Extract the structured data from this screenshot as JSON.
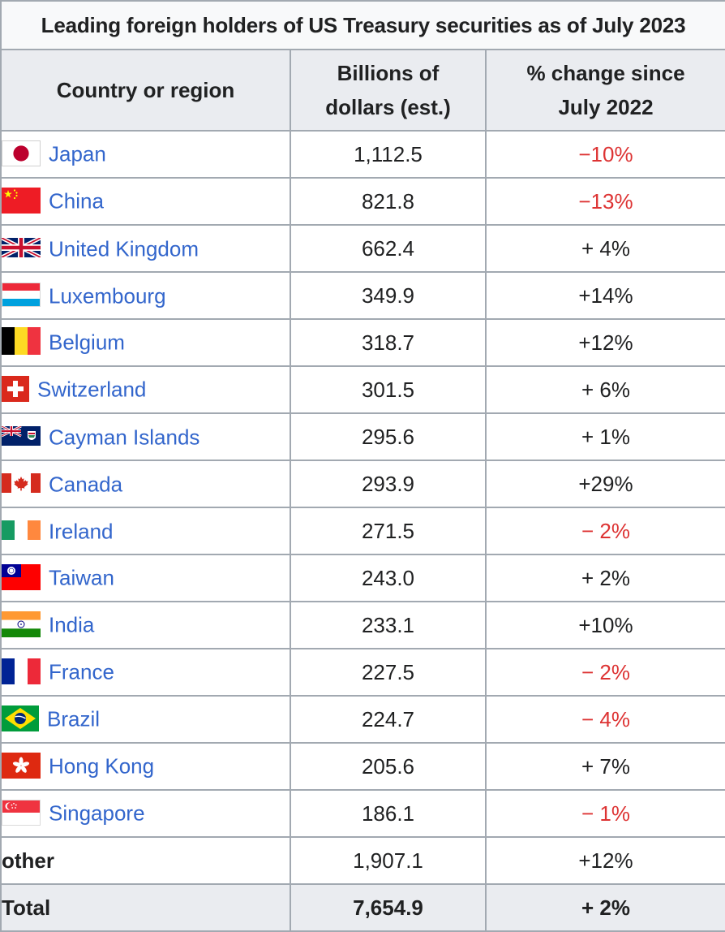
{
  "caption": "Leading foreign holders of US Treasury securities as of July 2023",
  "headers": {
    "country": "Country or region",
    "billions_line1": "Billions of",
    "billions_line2": "dollars (est.)",
    "change_line1": "% change since",
    "change_line2": "July 2022"
  },
  "rows": [
    {
      "country": "Japan",
      "flag": "japan-flag-icon",
      "value": "1,112.5",
      "change": "−10%",
      "negative": true
    },
    {
      "country": "China",
      "flag": "china-flag-icon",
      "value": "821.8",
      "change": "−13%",
      "negative": true
    },
    {
      "country": "United Kingdom",
      "flag": "uk-flag-icon",
      "value": "662.4",
      "change": "+ 4%",
      "negative": false
    },
    {
      "country": "Luxembourg",
      "flag": "luxembourg-flag-icon",
      "value": "349.9",
      "change": "+14%",
      "negative": false
    },
    {
      "country": "Belgium",
      "flag": "belgium-flag-icon",
      "value": "318.7",
      "change": "+12%",
      "negative": false
    },
    {
      "country": "Switzerland",
      "flag": "switzerland-flag-icon",
      "value": "301.5",
      "change": "+ 6%",
      "negative": false
    },
    {
      "country": "Cayman Islands",
      "flag": "cayman-islands-flag-icon",
      "value": "295.6",
      "change": "+ 1%",
      "negative": false
    },
    {
      "country": "Canada",
      "flag": "canada-flag-icon",
      "value": "293.9",
      "change": "+29%",
      "negative": false
    },
    {
      "country": "Ireland",
      "flag": "ireland-flag-icon",
      "value": "271.5",
      "change": "− 2%",
      "negative": true
    },
    {
      "country": "Taiwan",
      "flag": "taiwan-flag-icon",
      "value": "243.0",
      "change": "+ 2%",
      "negative": false
    },
    {
      "country": "India",
      "flag": "india-flag-icon",
      "value": "233.1",
      "change": "+10%",
      "negative": false
    },
    {
      "country": "France",
      "flag": "france-flag-icon",
      "value": "227.5",
      "change": "− 2%",
      "negative": true
    },
    {
      "country": "Brazil",
      "flag": "brazil-flag-icon",
      "value": "224.7",
      "change": "− 4%",
      "negative": true
    },
    {
      "country": "Hong Kong",
      "flag": "hong-kong-flag-icon",
      "value": "205.6",
      "change": "+ 7%",
      "negative": false
    },
    {
      "country": "Singapore",
      "flag": "singapore-flag-icon",
      "value": "186.1",
      "change": "− 1%",
      "negative": true
    }
  ],
  "other": {
    "label": "other",
    "value": "1,907.1",
    "change": "+12%"
  },
  "total": {
    "label": "Total",
    "value": "7,654.9",
    "change": "+ 2%"
  },
  "colors": {
    "link": "#3366cc",
    "negative": "#dd3333",
    "text": "#202122",
    "header_bg": "#eaecf0",
    "border": "#a2a9b1"
  }
}
